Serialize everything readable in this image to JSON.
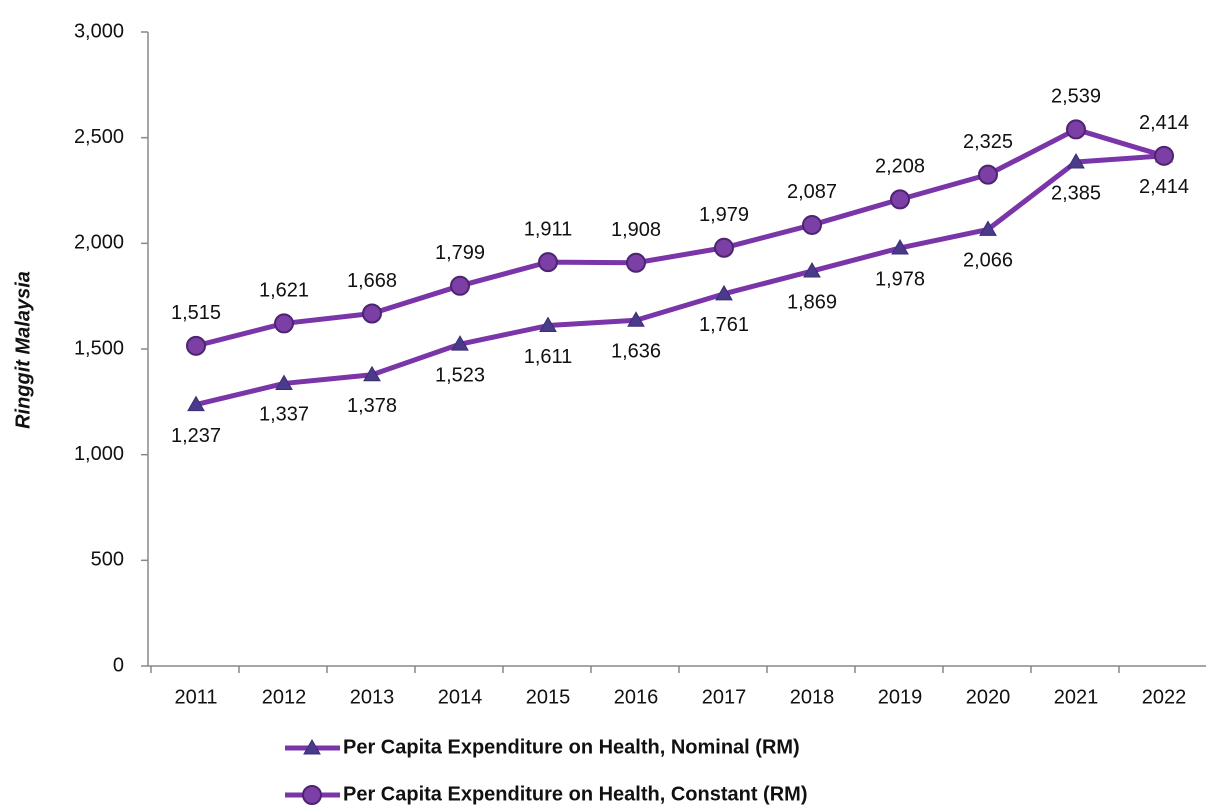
{
  "chart_data": {
    "type": "line",
    "y_axis_label": "Ringgit Malaysia",
    "categories": [
      "2011",
      "2012",
      "2013",
      "2014",
      "2015",
      "2016",
      "2017",
      "2018",
      "2019",
      "2020",
      "2021",
      "2022"
    ],
    "series": [
      {
        "name": "Per Capita Expenditure on Health, Nominal (RM)",
        "color": "#7a35a8",
        "marker": "triangle",
        "marker_color": "#4a3a8c",
        "values": [
          1237,
          1337,
          1378,
          1523,
          1611,
          1636,
          1761,
          1869,
          1978,
          2066,
          2385,
          2414
        ],
        "value_labels": [
          "1,237",
          "1,337",
          "1,378",
          "1,523",
          "1,611",
          "1,636",
          "1,761",
          "1,869",
          "1,978",
          "2,066",
          "2,385",
          "2,414"
        ]
      },
      {
        "name": "Per Capita Expenditure on Health, Constant (RM)",
        "color": "#7a35a8",
        "marker": "circle",
        "marker_color": "#7b3fa6",
        "values": [
          1515,
          1621,
          1668,
          1799,
          1911,
          1908,
          1979,
          2087,
          2208,
          2325,
          2539,
          2414
        ],
        "value_labels": [
          "1,515",
          "1,621",
          "1,668",
          "1,799",
          "1,911",
          "1,908",
          "1,979",
          "2,087",
          "2,208",
          "2,325",
          "2,539",
          "2,414"
        ]
      }
    ],
    "ylim": [
      0,
      3000
    ],
    "yticks": [
      0,
      500,
      {
        "value": 1000,
        "label": "1,000"
      },
      {
        "value": 1500,
        "label": "1,500"
      },
      {
        "value": 2000,
        "label": "2,000"
      },
      {
        "value": 2500,
        "label": "2,500"
      },
      {
        "value": 3000,
        "label": "3,000"
      }
    ],
    "grid": false,
    "legend": "bottom"
  }
}
